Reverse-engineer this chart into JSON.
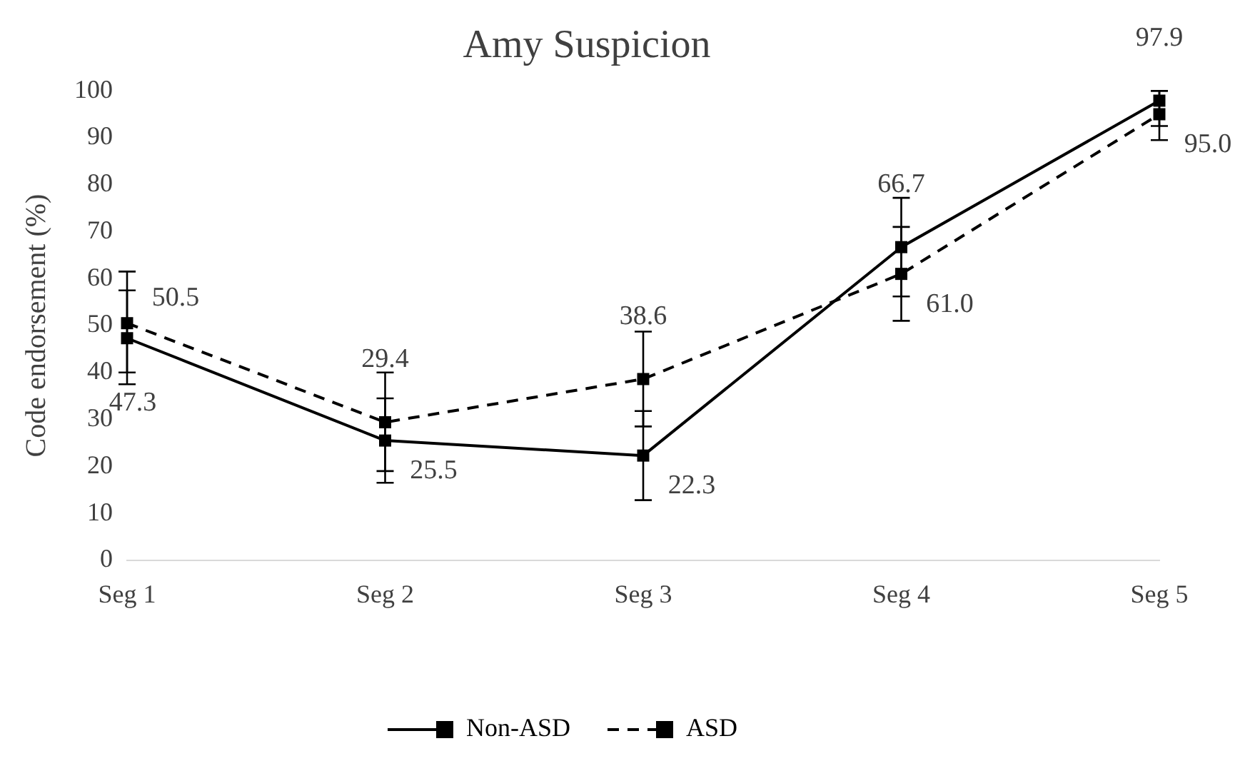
{
  "chart_data": {
    "type": "line",
    "title": "Amy Suspicion",
    "ylabel": "Code endorsement (%)",
    "categories": [
      "Seg 1",
      "Seg 2",
      "Seg 3",
      "Seg 4",
      "Seg 5"
    ],
    "series": [
      {
        "name": "Non-ASD",
        "color": "#000000",
        "line_style": "solid",
        "values": [
          47.3,
          25.5,
          22.3,
          66.7,
          97.9
        ],
        "value_labels": [
          "47.3",
          "25.5",
          "22.3",
          "66.7",
          "97.9"
        ],
        "errors": [
          [
            37.5,
            57.5
          ],
          [
            16.5,
            34.5
          ],
          [
            12.8,
            31.8
          ],
          [
            56.2,
            77.2
          ],
          [
            92.5,
            100
          ]
        ]
      },
      {
        "name": "ASD",
        "color": "#000000",
        "line_style": "dashed",
        "values": [
          50.5,
          29.4,
          38.6,
          61.0,
          95.0
        ],
        "value_labels": [
          "50.5",
          "29.4",
          "38.6",
          "61.0",
          "95.0"
        ],
        "errors": [
          [
            40,
            61.5
          ],
          [
            19,
            40
          ],
          [
            28.5,
            48.7
          ],
          [
            51,
            71
          ],
          [
            89.5,
            100
          ]
        ]
      }
    ],
    "ylim": [
      0,
      100
    ],
    "yticks": [
      0,
      10,
      20,
      30,
      40,
      50,
      60,
      70,
      80,
      90,
      100
    ],
    "grid": false,
    "legend": "bottom",
    "marker": "square"
  }
}
